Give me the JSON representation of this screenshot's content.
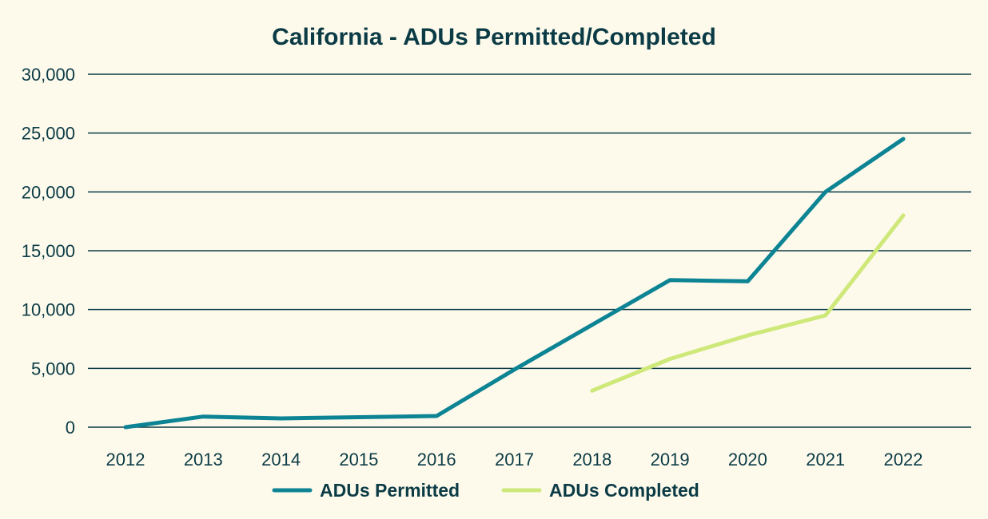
{
  "chart_data": {
    "type": "line",
    "title": "California - ADUs Permitted/Completed",
    "xlabel": "",
    "ylabel": "",
    "x": [
      "2012",
      "2013",
      "2014",
      "2015",
      "2016",
      "2017",
      "2018",
      "2019",
      "2020",
      "2021",
      "2022"
    ],
    "ylim": [
      0,
      30000
    ],
    "yticks": [
      0,
      5000,
      10000,
      15000,
      20000,
      25000,
      30000
    ],
    "ytick_labels": [
      "0",
      "5,000",
      "10,000",
      "15,000",
      "20,000",
      "25,000",
      "30,000"
    ],
    "grid": true,
    "legend_position": "bottom",
    "series": [
      {
        "name": "ADUs Permitted",
        "color": "#0d8494",
        "values": [
          0,
          900,
          750,
          850,
          950,
          4900,
          8700,
          12500,
          12400,
          20000,
          24500
        ]
      },
      {
        "name": "ADUs Completed",
        "color": "#cfe87a",
        "values": [
          null,
          null,
          null,
          null,
          null,
          null,
          3100,
          5800,
          7800,
          9500,
          18000
        ]
      }
    ]
  }
}
